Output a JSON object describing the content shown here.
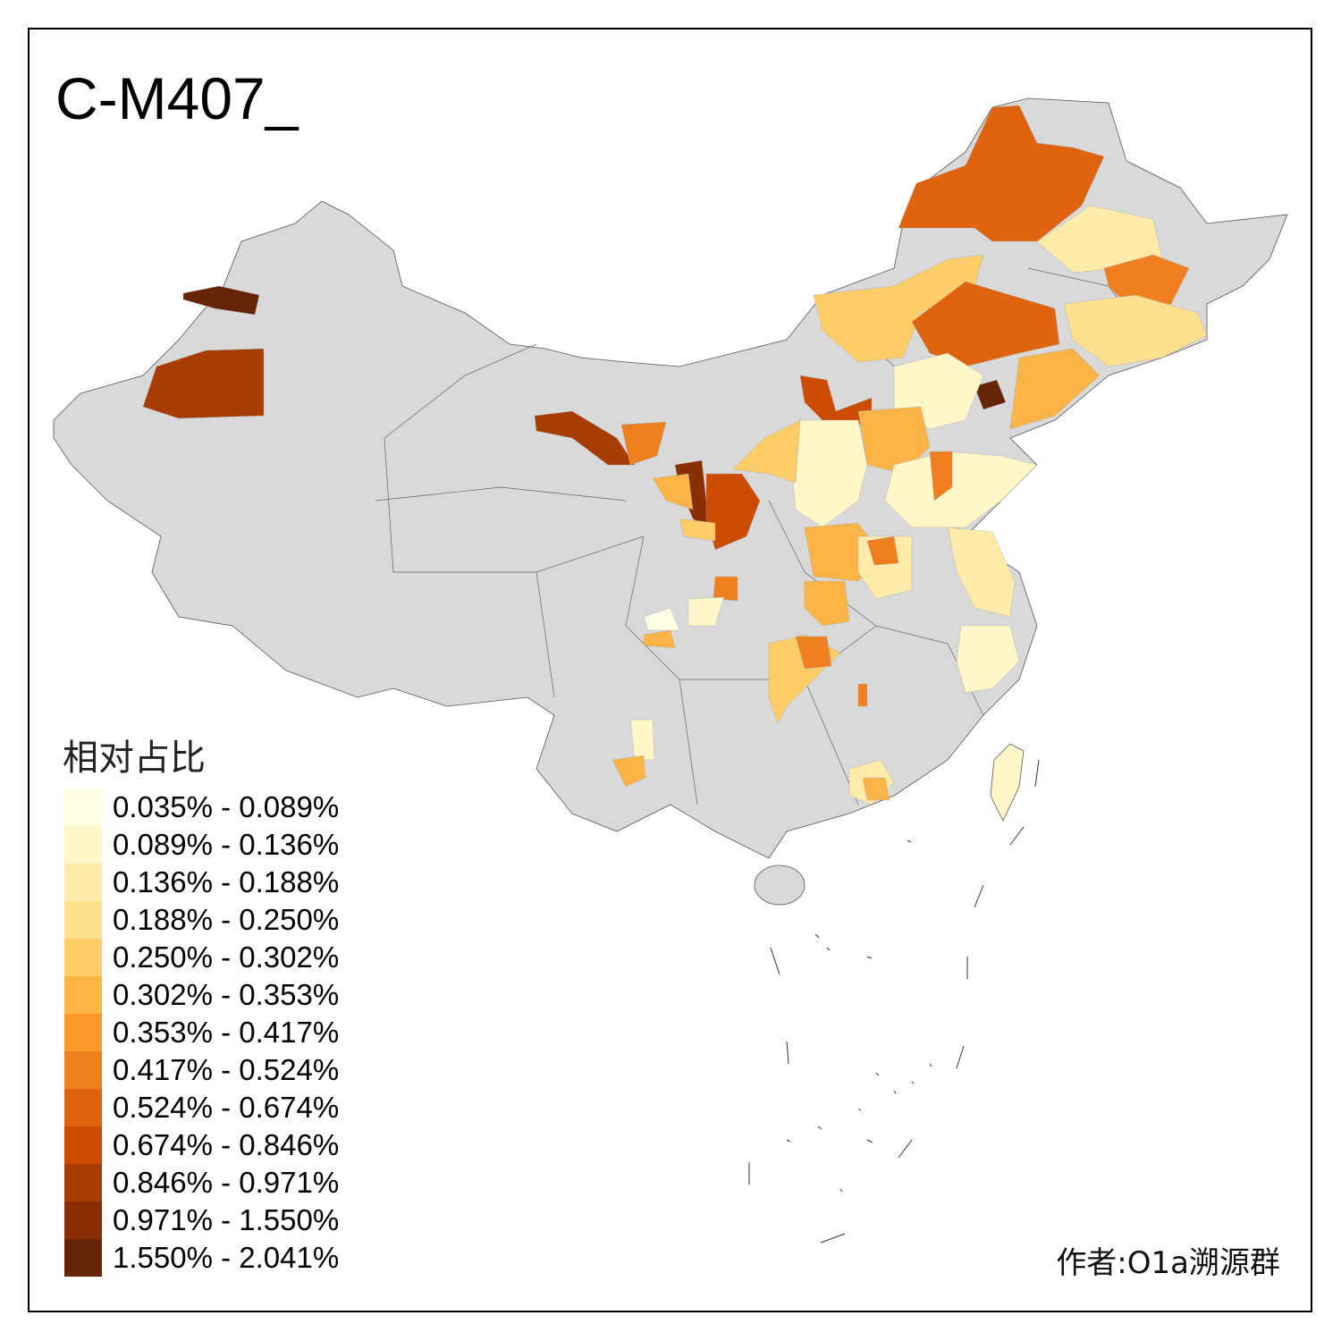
{
  "title": "C-M407_",
  "legend": {
    "title": "相对占比",
    "classes": [
      {
        "label": "0.035% - 0.089%",
        "color": "#FFFFE5"
      },
      {
        "label": "0.089% - 0.136%",
        "color": "#FFF7C8"
      },
      {
        "label": "0.136% - 0.188%",
        "color": "#FEEBAA"
      },
      {
        "label": "0.188% - 0.250%",
        "color": "#FEE08F"
      },
      {
        "label": "0.250% - 0.302%",
        "color": "#FECD68"
      },
      {
        "label": "0.302% - 0.353%",
        "color": "#FDB446"
      },
      {
        "label": "0.353% - 0.417%",
        "color": "#FB9A2A"
      },
      {
        "label": "0.417% - 0.524%",
        "color": "#F07F1F"
      },
      {
        "label": "0.524% - 0.674%",
        "color": "#E0630F"
      },
      {
        "label": "0.674% - 0.846%",
        "color": "#CC4C02"
      },
      {
        "label": "0.846% - 0.971%",
        "color": "#A83C05"
      },
      {
        "label": "0.971% - 1.550%",
        "color": "#8A2E05"
      },
      {
        "label": "1.550% - 2.041%",
        "color": "#662506"
      }
    ]
  },
  "author": "作者:O1a溯源群",
  "no_data_color": "#D9D9D9"
}
